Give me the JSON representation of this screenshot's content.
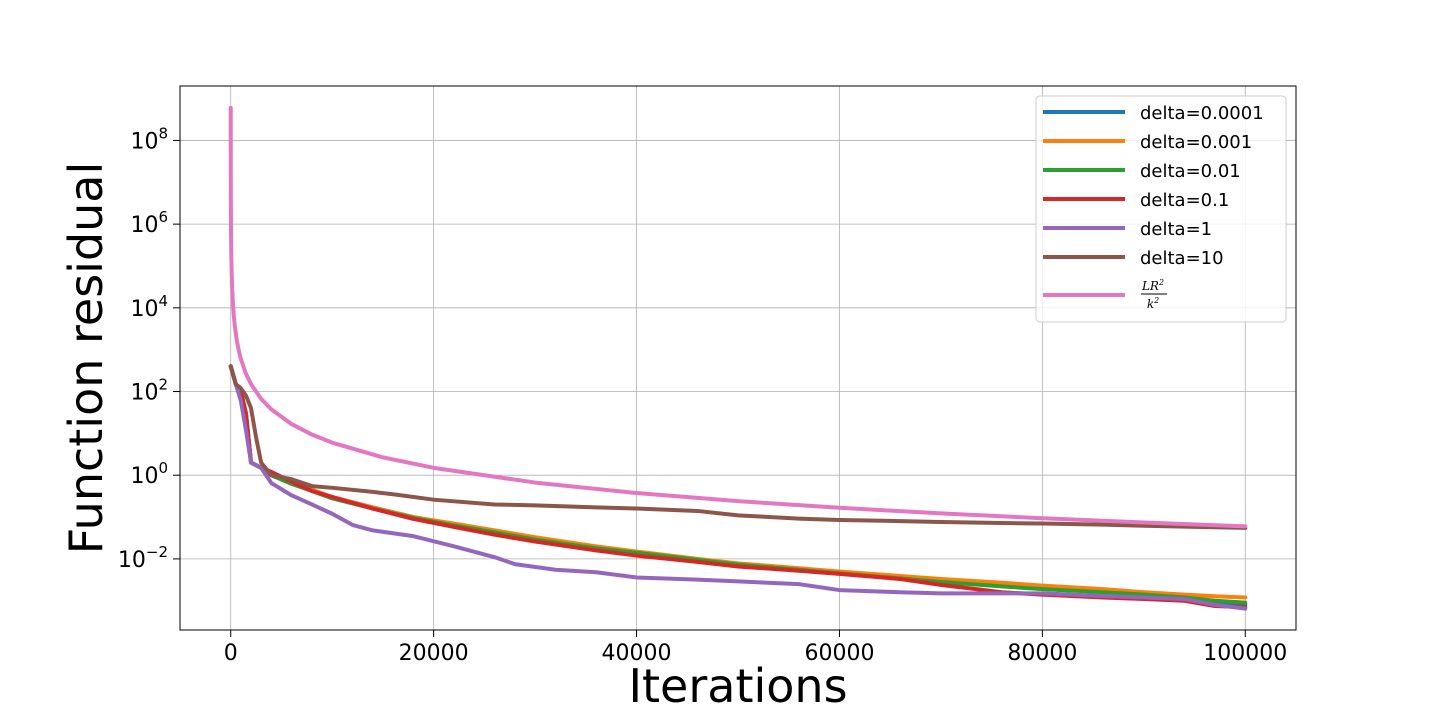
{
  "chart_data": {
    "type": "line",
    "title": "",
    "xlabel": "Iterations",
    "ylabel": "Function residual",
    "y_scale": "log",
    "xlim": [
      -5000,
      105000
    ],
    "ylim": [
      0.0002,
      2000000000
    ],
    "x_ticks": [
      0,
      20000,
      40000,
      60000,
      80000,
      100000
    ],
    "x_tick_labels": [
      "0",
      "20000",
      "40000",
      "60000",
      "80000",
      "100000"
    ],
    "y_ticks": [
      0.01,
      1,
      100,
      10000,
      1000000,
      100000000
    ],
    "y_tick_labels": [
      {
        "base": "10",
        "exp": "−2"
      },
      {
        "base": "10",
        "exp": "0"
      },
      {
        "base": "10",
        "exp": "2"
      },
      {
        "base": "10",
        "exp": "4"
      },
      {
        "base": "10",
        "exp": "6"
      },
      {
        "base": "10",
        "exp": "8"
      }
    ],
    "grid": true,
    "legend_position": "top-right",
    "series": [
      {
        "name": "delta=0.0001",
        "color": "#1f77b4",
        "x": [
          0,
          500,
          1000,
          1500,
          2000,
          3000,
          4000,
          6000,
          8000,
          10000,
          14000,
          18000,
          22000,
          26000,
          30000,
          36000,
          40000,
          46000,
          50000,
          56000,
          60000,
          66000,
          70000,
          76000,
          80000,
          86000,
          90000,
          94000,
          97000,
          100000
        ],
        "y": [
          400,
          150,
          100,
          30,
          2,
          1.5,
          1.0,
          0.65,
          0.45,
          0.3,
          0.17,
          0.1,
          0.065,
          0.045,
          0.03,
          0.018,
          0.014,
          0.0095,
          0.0075,
          0.0057,
          0.0048,
          0.0036,
          0.003,
          0.0024,
          0.002,
          0.0017,
          0.0015,
          0.0012,
          0.0009,
          0.0008
        ]
      },
      {
        "name": "delta=0.001",
        "color": "#ff7f0e",
        "x": [
          0,
          500,
          1000,
          1500,
          2000,
          3000,
          4000,
          6000,
          8000,
          10000,
          14000,
          18000,
          22000,
          26000,
          30000,
          36000,
          40000,
          46000,
          50000,
          56000,
          60000,
          66000,
          70000,
          76000,
          80000,
          86000,
          90000,
          94000,
          97000,
          100000
        ],
        "y": [
          400,
          150,
          100,
          30,
          2,
          1.5,
          1.0,
          0.65,
          0.45,
          0.3,
          0.17,
          0.1,
          0.07,
          0.048,
          0.033,
          0.02,
          0.015,
          0.01,
          0.0078,
          0.006,
          0.005,
          0.0039,
          0.0033,
          0.0027,
          0.0023,
          0.0019,
          0.0016,
          0.0014,
          0.00128,
          0.0012
        ]
      },
      {
        "name": "delta=0.01",
        "color": "#2ca02c",
        "x": [
          0,
          500,
          1000,
          1500,
          2000,
          3000,
          4000,
          6000,
          8000,
          10000,
          14000,
          18000,
          22000,
          26000,
          30000,
          36000,
          40000,
          46000,
          50000,
          56000,
          60000,
          66000,
          70000,
          76000,
          80000,
          86000,
          90000,
          94000,
          97000,
          100000
        ],
        "y": [
          400,
          150,
          100,
          30,
          2,
          1.5,
          1.0,
          0.62,
          0.42,
          0.28,
          0.16,
          0.095,
          0.063,
          0.043,
          0.029,
          0.018,
          0.014,
          0.0095,
          0.0073,
          0.0055,
          0.0045,
          0.0034,
          0.0028,
          0.0022,
          0.0019,
          0.0016,
          0.0014,
          0.0012,
          0.001,
          0.0009
        ]
      },
      {
        "name": "delta=0.1",
        "color": "#d62728",
        "x": [
          0,
          500,
          1000,
          1500,
          2000,
          3000,
          4000,
          6000,
          8000,
          10000,
          14000,
          18000,
          22000,
          26000,
          30000,
          36000,
          40000,
          46000,
          50000,
          56000,
          60000,
          66000,
          70000,
          76000,
          80000,
          86000,
          90000,
          94000,
          97000,
          100000
        ],
        "y": [
          400,
          150,
          100,
          30,
          2,
          1.5,
          1.2,
          0.7,
          0.42,
          0.3,
          0.16,
          0.09,
          0.058,
          0.038,
          0.026,
          0.016,
          0.012,
          0.0085,
          0.0066,
          0.0052,
          0.0044,
          0.0033,
          0.0024,
          0.0016,
          0.0014,
          0.0012,
          0.0011,
          0.001,
          0.00075,
          0.0007
        ]
      },
      {
        "name": "delta=1",
        "color": "#9467bd",
        "x": [
          0,
          500,
          1000,
          1500,
          2000,
          3000,
          4000,
          6000,
          8000,
          10000,
          12000,
          14000,
          18000,
          22000,
          26000,
          28000,
          32000,
          36000,
          40000,
          46000,
          50000,
          56000,
          60000,
          66000,
          70000,
          76000,
          80000,
          86000,
          90000,
          94000,
          97000,
          100000
        ],
        "y": [
          400,
          150,
          60,
          12,
          2,
          1.5,
          0.65,
          0.33,
          0.2,
          0.12,
          0.065,
          0.048,
          0.035,
          0.02,
          0.011,
          0.0075,
          0.0055,
          0.0048,
          0.0036,
          0.0032,
          0.0029,
          0.0025,
          0.0018,
          0.0016,
          0.0015,
          0.0015,
          0.0015,
          0.0013,
          0.0012,
          0.0011,
          0.0008,
          0.00065
        ]
      },
      {
        "name": "delta=10",
        "color": "#8c564b",
        "x": [
          0,
          500,
          1000,
          1500,
          2000,
          2500,
          3000,
          4000,
          6000,
          8000,
          10000,
          14000,
          16000,
          20000,
          26000,
          30000,
          36000,
          40000,
          46000,
          50000,
          56000,
          60000,
          66000,
          70000,
          76000,
          80000,
          86000,
          90000,
          94000,
          97000,
          100000
        ],
        "y": [
          400,
          150,
          120,
          80,
          40,
          8,
          2,
          1.0,
          0.8,
          0.55,
          0.5,
          0.4,
          0.35,
          0.26,
          0.2,
          0.19,
          0.17,
          0.16,
          0.14,
          0.11,
          0.092,
          0.085,
          0.08,
          0.076,
          0.072,
          0.07,
          0.066,
          0.062,
          0.059,
          0.057,
          0.055
        ]
      },
      {
        "name": "LR^2/k^2",
        "color": "#e377c2",
        "formula": "600000000/(x+1)^2"
      }
    ]
  },
  "legend": {
    "entries": [
      {
        "label": "delta=0.0001",
        "color": "#1f77b4"
      },
      {
        "label": "delta=0.001",
        "color": "#ff7f0e"
      },
      {
        "label": "delta=0.01",
        "color": "#2ca02c"
      },
      {
        "label": "delta=0.1",
        "color": "#d62728"
      },
      {
        "label": "delta=1",
        "color": "#9467bd"
      },
      {
        "label": "delta=10",
        "color": "#8c564b"
      }
    ],
    "formula_entry": {
      "color": "#e377c2",
      "numerator": "LR",
      "numerator_exp": "2",
      "denominator": "k",
      "denominator_exp": "2"
    }
  }
}
